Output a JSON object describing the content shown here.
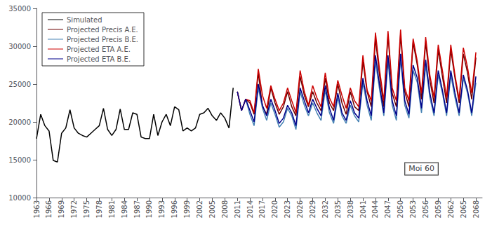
{
  "chart_data": {
    "type": "line",
    "xlim": [
      1963,
      2069.5
    ],
    "xticks": [
      1963,
      1966,
      1969,
      1972,
      1975,
      1978,
      1981,
      1984,
      1987,
      1990,
      1993,
      1996,
      1999,
      2002,
      2005,
      2008,
      2011,
      2014,
      2017,
      2020,
      2023,
      2026,
      2029,
      2032,
      2035,
      2038,
      2041,
      2044,
      2047,
      2050,
      2053,
      2056,
      2059,
      2062,
      2065,
      2068
    ],
    "ylim": [
      10000,
      35000
    ],
    "yticks": [
      10000,
      15000,
      20000,
      25000,
      30000,
      35000
    ],
    "grid": false,
    "legend": "upper left",
    "annotations": [
      {
        "text": "Moi 60",
        "x": 2055,
        "y": 13800
      }
    ],
    "series": [
      {
        "name": "Simulated",
        "color": "#000000",
        "x": [
          1963,
          1964,
          1965,
          1966,
          1967,
          1968,
          1969,
          1970,
          1971,
          1972,
          1973,
          1974,
          1975,
          1976,
          1977,
          1978,
          1979,
          1980,
          1981,
          1982,
          1983,
          1984,
          1985,
          1986,
          1987,
          1988,
          1989,
          1990,
          1991,
          1992,
          1993,
          1994,
          1995,
          1996,
          1997,
          1998,
          1999,
          2000,
          2001,
          2002,
          2003,
          2004,
          2005,
          2006,
          2007,
          2008,
          2009,
          2010
        ],
        "values": [
          17800,
          21000,
          19500,
          18800,
          14900,
          14700,
          18500,
          19200,
          21600,
          19200,
          18500,
          18200,
          18000,
          18500,
          19000,
          19500,
          21800,
          19000,
          18200,
          19000,
          21700,
          19000,
          19000,
          21200,
          21000,
          18000,
          17800,
          17800,
          21000,
          18200,
          20000,
          21000,
          19500,
          22000,
          21600,
          18800,
          19200,
          18800,
          19200,
          21000,
          21200,
          21800,
          20800,
          20200,
          21200,
          20500,
          19200,
          24500
        ]
      },
      {
        "name": "Projected Precis A.E.",
        "color": "#6B0000",
        "x": [
          2011,
          2012,
          2013,
          2014,
          2015,
          2016,
          2017,
          2018,
          2019,
          2020,
          2021,
          2022,
          2023,
          2024,
          2025,
          2026,
          2027,
          2028,
          2029,
          2030,
          2031,
          2032,
          2033,
          2034,
          2035,
          2036,
          2037,
          2038,
          2039,
          2040,
          2041,
          2042,
          2043,
          2044,
          2045,
          2046,
          2047,
          2048,
          2049,
          2050,
          2051,
          2052,
          2053,
          2054,
          2055,
          2056,
          2057,
          2058,
          2059,
          2060,
          2061,
          2062,
          2063,
          2064,
          2065,
          2066,
          2067,
          2068
        ],
        "values": [
          24000,
          21500,
          23000,
          22500,
          21000,
          26500,
          22000,
          21000,
          24500,
          22500,
          21000,
          22000,
          24000,
          22000,
          20800,
          26000,
          23500,
          22000,
          24000,
          22500,
          21500,
          25800,
          22500,
          21500,
          25000,
          22500,
          21000,
          24000,
          22000,
          21500,
          28000,
          24000,
          22000,
          31000,
          26000,
          22000,
          31500,
          23800,
          22000,
          31500,
          24000,
          22000,
          30500,
          27500,
          23000,
          30500,
          25500,
          22500,
          29500,
          26000,
          22500,
          29500,
          25800,
          22500,
          29000,
          26500,
          23000,
          28500
        ]
      },
      {
        "name": "Projected Precis B.E.",
        "color": "#4682B4",
        "x": [
          2011,
          2012,
          2013,
          2014,
          2015,
          2016,
          2017,
          2018,
          2019,
          2020,
          2021,
          2022,
          2023,
          2024,
          2025,
          2026,
          2027,
          2028,
          2029,
          2030,
          2031,
          2032,
          2033,
          2034,
          2035,
          2036,
          2037,
          2038,
          2039,
          2040,
          2041,
          2042,
          2043,
          2044,
          2045,
          2046,
          2047,
          2048,
          2049,
          2050,
          2051,
          2052,
          2053,
          2054,
          2055,
          2056,
          2057,
          2058,
          2059,
          2060,
          2061,
          2062,
          2063,
          2064,
          2065,
          2066,
          2067,
          2068
        ],
        "values": [
          24000,
          21500,
          23000,
          21000,
          19500,
          24500,
          21800,
          20200,
          22500,
          21000,
          19300,
          20000,
          21800,
          20800,
          19000,
          24000,
          22200,
          20800,
          22500,
          21200,
          20200,
          24200,
          21200,
          19800,
          23200,
          20800,
          19800,
          22200,
          20800,
          20000,
          25200,
          22200,
          20200,
          28000,
          24200,
          20800,
          28000,
          22200,
          20200,
          28500,
          22200,
          20500,
          26800,
          25200,
          21200,
          27500,
          23200,
          20800,
          26200,
          23800,
          20800,
          26200,
          23200,
          20800,
          25800,
          23800,
          20800,
          25200
        ]
      },
      {
        "name": "Projected ETA A.E.",
        "color": "#CC0000",
        "x": [
          2011,
          2012,
          2013,
          2014,
          2015,
          2016,
          2017,
          2018,
          2019,
          2020,
          2021,
          2022,
          2023,
          2024,
          2025,
          2026,
          2027,
          2028,
          2029,
          2030,
          2031,
          2032,
          2033,
          2034,
          2035,
          2036,
          2037,
          2038,
          2039,
          2040,
          2041,
          2042,
          2043,
          2044,
          2045,
          2046,
          2047,
          2048,
          2049,
          2050,
          2051,
          2052,
          2053,
          2054,
          2055,
          2056,
          2057,
          2058,
          2059,
          2060,
          2061,
          2062,
          2063,
          2064,
          2065,
          2066,
          2067,
          2068
        ],
        "values": [
          24000,
          21500,
          23000,
          22800,
          21200,
          27000,
          23500,
          21800,
          24800,
          23000,
          21500,
          22500,
          24500,
          22800,
          21200,
          26800,
          24000,
          22200,
          24800,
          23200,
          22000,
          26500,
          23200,
          22000,
          25500,
          23500,
          21800,
          24500,
          22800,
          22000,
          28800,
          24200,
          22800,
          31800,
          26800,
          22800,
          32000,
          24500,
          22800,
          32200,
          24500,
          22800,
          31000,
          28000,
          23800,
          31200,
          26200,
          23200,
          30200,
          26800,
          23200,
          30200,
          26200,
          23000,
          29800,
          27200,
          23800,
          29200
        ]
      },
      {
        "name": "Projected ETA B.E.",
        "color": "#00008B",
        "x": [
          2011,
          2012,
          2013,
          2014,
          2015,
          2016,
          2017,
          2018,
          2019,
          2020,
          2021,
          2022,
          2023,
          2024,
          2025,
          2026,
          2027,
          2028,
          2029,
          2030,
          2031,
          2032,
          2033,
          2034,
          2035,
          2036,
          2037,
          2038,
          2039,
          2040,
          2041,
          2042,
          2043,
          2044,
          2045,
          2046,
          2047,
          2048,
          2049,
          2050,
          2051,
          2052,
          2053,
          2054,
          2055,
          2056,
          2057,
          2058,
          2059,
          2060,
          2061,
          2062,
          2063,
          2064,
          2065,
          2066,
          2067,
          2068
        ],
        "values": [
          24000,
          21500,
          23000,
          21500,
          20000,
          25000,
          22200,
          20800,
          23000,
          21500,
          19800,
          20500,
          22200,
          21200,
          19500,
          24500,
          22800,
          21200,
          23000,
          21800,
          20800,
          24800,
          21800,
          20200,
          23800,
          21200,
          20200,
          22800,
          21200,
          20500,
          25800,
          22800,
          20800,
          28800,
          24800,
          21200,
          28800,
          22800,
          20800,
          29000,
          22800,
          21000,
          27500,
          25800,
          21800,
          28200,
          23800,
          21200,
          26800,
          24200,
          21200,
          26800,
          23800,
          21200,
          26200,
          24200,
          21200,
          26000
        ]
      }
    ]
  }
}
